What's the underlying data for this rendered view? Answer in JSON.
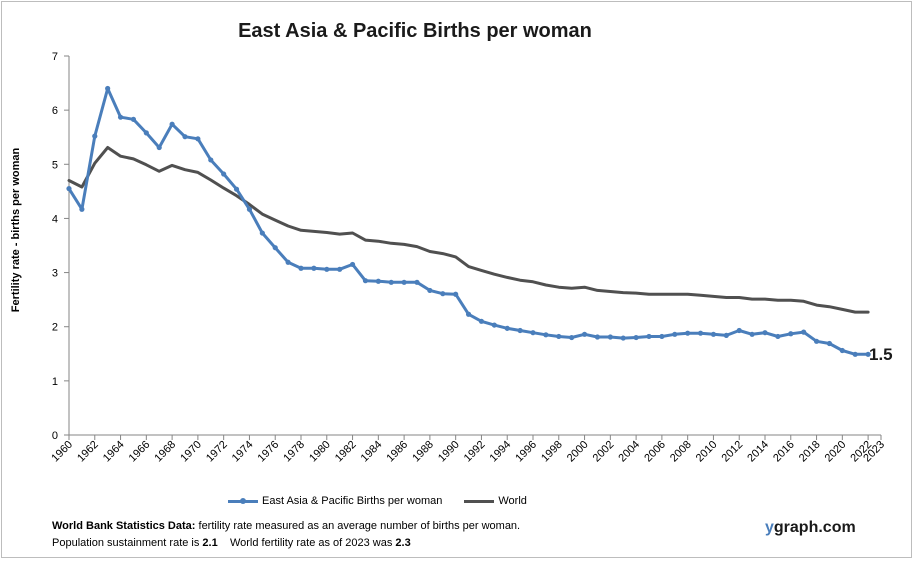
{
  "chart_data": {
    "type": "line",
    "title": "East Asia & Pacific Births per woman",
    "xlabel": "",
    "ylabel": "Fertility rate  - births per woman",
    "ylim": [
      0,
      7
    ],
    "yticks": [
      0,
      1,
      2,
      3,
      4,
      5,
      6,
      7
    ],
    "xlim": [
      1960,
      2023
    ],
    "xticks": [
      "1960",
      "1962",
      "1964",
      "1966",
      "1968",
      "1970",
      "1972",
      "1974",
      "1976",
      "1978",
      "1980",
      "1982",
      "1984",
      "1986",
      "1988",
      "1990",
      "1992",
      "1994",
      "1996",
      "1998",
      "2000",
      "2002",
      "2004",
      "2006",
      "2008",
      "2010",
      "2012",
      "2014",
      "2016",
      "2018",
      "2020",
      "2022",
      "2023"
    ],
    "grid": false,
    "legend_position": "bottom",
    "x": [
      1960,
      1961,
      1962,
      1963,
      1964,
      1965,
      1966,
      1967,
      1968,
      1969,
      1970,
      1971,
      1972,
      1973,
      1974,
      1975,
      1976,
      1977,
      1978,
      1979,
      1980,
      1981,
      1982,
      1983,
      1984,
      1985,
      1986,
      1987,
      1988,
      1989,
      1990,
      1991,
      1992,
      1993,
      1994,
      1995,
      1996,
      1997,
      1998,
      1999,
      2000,
      2001,
      2002,
      2003,
      2004,
      2005,
      2006,
      2007,
      2008,
      2009,
      2010,
      2011,
      2012,
      2013,
      2014,
      2015,
      2016,
      2017,
      2018,
      2019,
      2020,
      2021,
      2022
    ],
    "series": [
      {
        "name": "East Asia & Pacific Births per woman",
        "color": "#4a7ebb",
        "markers": true,
        "values": [
          4.55,
          4.17,
          5.52,
          6.4,
          5.87,
          5.83,
          5.58,
          5.31,
          5.74,
          5.51,
          5.47,
          5.08,
          4.82,
          4.54,
          4.17,
          3.73,
          3.46,
          3.19,
          3.08,
          3.08,
          3.06,
          3.06,
          3.15,
          2.85,
          2.84,
          2.82,
          2.82,
          2.82,
          2.67,
          2.61,
          2.6,
          2.23,
          2.1,
          2.03,
          1.97,
          1.93,
          1.89,
          1.85,
          1.82,
          1.8,
          1.86,
          1.81,
          1.81,
          1.79,
          1.8,
          1.82,
          1.82,
          1.86,
          1.88,
          1.88,
          1.86,
          1.84,
          1.93,
          1.86,
          1.89,
          1.82,
          1.87,
          1.9,
          1.73,
          1.69,
          1.56,
          1.49,
          1.49
        ]
      },
      {
        "name": "World",
        "color": "#505050",
        "markers": false,
        "values": [
          4.7,
          4.58,
          5.02,
          5.31,
          5.15,
          5.1,
          4.99,
          4.87,
          4.98,
          4.9,
          4.85,
          4.71,
          4.56,
          4.42,
          4.26,
          4.08,
          3.97,
          3.86,
          3.78,
          3.76,
          3.74,
          3.71,
          3.73,
          3.6,
          3.58,
          3.54,
          3.52,
          3.48,
          3.39,
          3.35,
          3.29,
          3.11,
          3.04,
          2.97,
          2.91,
          2.86,
          2.83,
          2.77,
          2.73,
          2.71,
          2.73,
          2.67,
          2.65,
          2.63,
          2.62,
          2.6,
          2.6,
          2.6,
          2.6,
          2.58,
          2.56,
          2.54,
          2.54,
          2.51,
          2.51,
          2.49,
          2.49,
          2.47,
          2.4,
          2.37,
          2.32,
          2.27,
          2.27
        ]
      }
    ],
    "end_label": "1.5"
  },
  "legend": {
    "series1": "East Asia & Pacific Births per woman",
    "series2": "World"
  },
  "footer": {
    "source_bold": "World Bank Statistics Data:",
    "source_text": " fertility rate measured as an average number  of births per woman.",
    "line2_a": "Population sustainment rate is ",
    "sustain_rate": "2.1",
    "line2_b": "    World fertility rate as of 2023 was ",
    "world_rate": "2.3"
  },
  "brand": {
    "y": "y",
    "rest": "graph.com"
  }
}
